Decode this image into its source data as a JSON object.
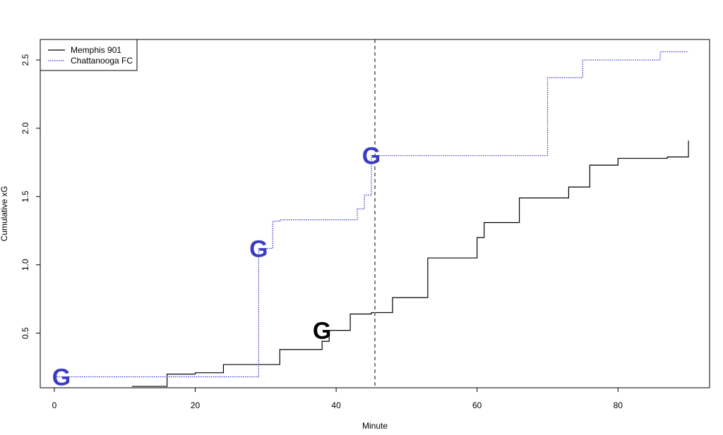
{
  "chart_data": {
    "type": "line",
    "step": true,
    "xlabel": "Minute",
    "ylabel": "Cumulative xG",
    "xlim": [
      -2,
      93
    ],
    "ylim": [
      0.1,
      2.65
    ],
    "x_ticks": [
      0,
      20,
      40,
      60,
      80
    ],
    "y_ticks": [
      0.5,
      1.0,
      1.5,
      2.0,
      2.5
    ],
    "x_tick_labels": [
      "0",
      "20",
      "40",
      "60",
      "80"
    ],
    "y_tick_labels": [
      "0.5",
      "1.0",
      "1.5",
      "2.0",
      "2.5"
    ],
    "grid": false,
    "legend_position": "top-left",
    "halftime_line": {
      "x": 45.5,
      "style": "dashed",
      "color": "#555555"
    },
    "series": [
      {
        "name": "Memphis 901",
        "color": "#000000",
        "line_style": "solid",
        "x": [
          11,
          16,
          20,
          24,
          32,
          38,
          39,
          42,
          45,
          48,
          53,
          60,
          61,
          66,
          73,
          76,
          80,
          87,
          90
        ],
        "y": [
          0.11,
          0.2,
          0.21,
          0.27,
          0.38,
          0.44,
          0.52,
          0.64,
          0.65,
          0.76,
          1.05,
          1.2,
          1.31,
          1.49,
          1.57,
          1.73,
          1.78,
          1.79,
          1.91
        ]
      },
      {
        "name": "Chattanooga FC",
        "color": "#3333cc",
        "line_style": "dotted",
        "x": [
          0,
          29,
          31,
          32,
          43,
          44,
          45,
          70,
          75,
          86,
          90
        ],
        "y": [
          0.18,
          1.12,
          1.32,
          1.33,
          1.41,
          1.51,
          1.8,
          2.37,
          2.5,
          2.56,
          2.56
        ]
      }
    ],
    "goal_markers": [
      {
        "label": "G",
        "x": 1,
        "y": 0.18,
        "color": "#3b3bc4"
      },
      {
        "label": "G",
        "x": 29,
        "y": 1.12,
        "color": "#3b3bc4"
      },
      {
        "label": "G",
        "x": 45,
        "y": 1.8,
        "color": "#3b3bc4"
      },
      {
        "label": "G",
        "x": 38,
        "y": 0.52,
        "color": "#000000"
      }
    ]
  }
}
